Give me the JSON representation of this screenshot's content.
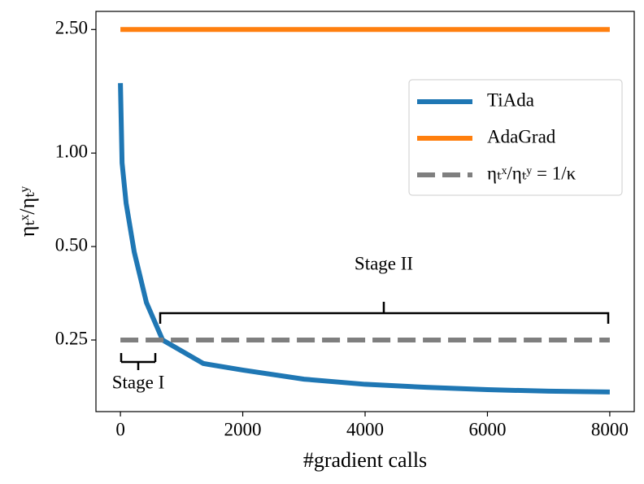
{
  "chart_data": {
    "type": "line",
    "xlabel": "#gradient calls",
    "ylabel": "ηₜˣ/ηₜʸ",
    "xlim": [
      -400,
      8400
    ],
    "xticks": [
      0,
      2000,
      4000,
      6000,
      8000
    ],
    "ylim": [
      0.147,
      2.86
    ],
    "yscale": "log",
    "yticks": [
      {
        "value": 0.25,
        "label": "0.25"
      },
      {
        "value": 0.5,
        "label": "0.50"
      },
      {
        "value": 1,
        "label": "1.00"
      },
      {
        "value": 2.5,
        "label": "2.50"
      }
    ],
    "legend": "upper right",
    "annotations": [
      "Stage I",
      "Stage II"
    ],
    "series": [
      {
        "name": "TiAda",
        "color": "#1f77b4",
        "style": "solid",
        "x": [
          0,
          27,
          93,
          226,
          425,
          690,
          1355,
          2000,
          3000,
          4000,
          5000,
          6000,
          7000,
          8000
        ],
        "values": [
          1.68,
          0.93,
          0.69,
          0.48,
          0.33,
          0.25,
          0.21,
          0.2,
          0.187,
          0.18,
          0.176,
          0.173,
          0.171,
          0.17
        ]
      },
      {
        "name": "AdaGrad",
        "color": "#ff7f0e",
        "style": "solid",
        "x": [
          0,
          8000
        ],
        "values": [
          2.5,
          2.5
        ]
      },
      {
        "name": "ηₜˣ/ηₜʸ = 1/κ",
        "color": "#7f7f7f",
        "style": "dashed",
        "x": [
          0,
          8000
        ],
        "values": [
          0.25,
          0.25
        ]
      }
    ]
  }
}
